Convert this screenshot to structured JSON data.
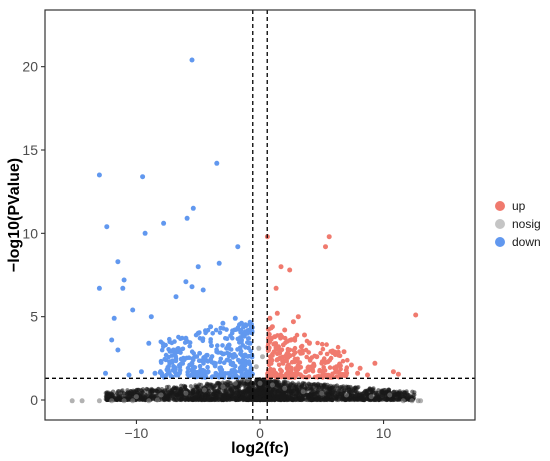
{
  "chart_data": {
    "type": "scatter",
    "title": "",
    "xlabel": "log2(fc)",
    "ylabel": "−log10(PValue)",
    "xlim": [
      -17.4,
      17.4
    ],
    "ylim": [
      -1.2,
      23.4
    ],
    "x_ticks": [
      -10,
      0,
      10
    ],
    "y_ticks": [
      0,
      5,
      10,
      15,
      20
    ],
    "x_tick_labels": [
      "−10",
      "0",
      "10"
    ],
    "y_tick_labels": [
      "0",
      "5",
      "10",
      "15",
      "20"
    ],
    "grid": false,
    "legend_position": "right",
    "vlines": [
      -0.585,
      0.585
    ],
    "hline": 1.301,
    "series": [
      {
        "name": "up",
        "color": "#f07a6e",
        "points": [
          [
            0.6,
            9.8
          ],
          [
            1.7,
            8.0
          ],
          [
            2.4,
            7.8
          ],
          [
            5.3,
            9.2
          ],
          [
            5.6,
            9.8
          ],
          [
            1.3,
            6.7
          ],
          [
            3.1,
            5.0
          ],
          [
            12.6,
            5.1
          ],
          [
            4.0,
            3.4
          ],
          [
            6.8,
            2.9
          ],
          [
            9.3,
            2.2
          ],
          [
            10.8,
            1.7
          ],
          [
            11.2,
            1.55
          ],
          [
            0.8,
            4.9
          ],
          [
            1.0,
            4.4
          ],
          [
            1.2,
            3.8
          ],
          [
            1.5,
            3.2
          ],
          [
            2.0,
            4.2
          ],
          [
            2.5,
            3.6
          ],
          [
            3.3,
            2.8
          ],
          [
            4.6,
            2.6
          ],
          [
            5.5,
            2.3
          ],
          [
            6.2,
            2.0
          ],
          [
            7.4,
            2.1
          ],
          [
            8.1,
            1.9
          ],
          [
            0.7,
            3.0
          ],
          [
            0.9,
            2.2
          ],
          [
            1.1,
            1.8
          ],
          [
            1.6,
            2.5
          ],
          [
            2.2,
            1.9
          ],
          [
            2.8,
            2.3
          ],
          [
            3.7,
            1.7
          ],
          [
            4.2,
            2.0
          ],
          [
            5.1,
            1.6
          ],
          [
            6.6,
            1.5
          ],
          [
            7.9,
            1.6
          ],
          [
            8.7,
            1.5
          ],
          [
            1.4,
            5.2
          ],
          [
            2.7,
            4.7
          ],
          [
            3.6,
            3.9
          ]
        ]
      },
      {
        "name": "nosig",
        "color": "#7f7f7f",
        "points": [
          [
            -13.0,
            -0.05
          ],
          [
            -12.0,
            -0.05
          ],
          [
            -11.0,
            -0.05
          ],
          [
            -10.3,
            -0.05
          ],
          [
            -9.0,
            -0.05
          ],
          [
            -8.3,
            0.0
          ],
          [
            -14.4,
            -0.05
          ],
          [
            -15.2,
            -0.05
          ],
          [
            11.6,
            -0.05
          ],
          [
            12.3,
            -0.05
          ],
          [
            12.8,
            -0.05
          ],
          [
            13.0,
            -0.05
          ],
          [
            -6.0,
            0.4
          ],
          [
            -4.5,
            0.6
          ],
          [
            -3.0,
            0.8
          ],
          [
            -2.0,
            1.0
          ],
          [
            -1.0,
            1.2
          ],
          [
            0.0,
            1.0
          ],
          [
            1.0,
            0.9
          ],
          [
            2.0,
            0.7
          ],
          [
            3.5,
            0.5
          ],
          [
            5.0,
            0.4
          ],
          [
            7.0,
            0.3
          ],
          [
            9.0,
            0.2
          ],
          [
            10.5,
            0.3
          ],
          [
            -8.0,
            0.3
          ],
          [
            -10.0,
            0.2
          ],
          [
            -0.3,
            2.0
          ],
          [
            0.2,
            2.6
          ],
          [
            -0.1,
            3.1
          ]
        ]
      },
      {
        "name": "down",
        "color": "#6198ef",
        "points": [
          [
            -5.5,
            20.4
          ],
          [
            -3.5,
            14.2
          ],
          [
            -13.0,
            13.5
          ],
          [
            -9.5,
            13.4
          ],
          [
            -5.4,
            11.5
          ],
          [
            -5.9,
            10.9
          ],
          [
            -12.4,
            10.4
          ],
          [
            -9.3,
            10.0
          ],
          [
            -7.8,
            10.6
          ],
          [
            -1.8,
            9.2
          ],
          [
            -11.5,
            8.3
          ],
          [
            -5.0,
            8.0
          ],
          [
            -3.3,
            8.2
          ],
          [
            -11.0,
            7.2
          ],
          [
            -6.0,
            7.1
          ],
          [
            -5.5,
            6.8
          ],
          [
            -4.6,
            6.6
          ],
          [
            -13.0,
            6.7
          ],
          [
            -11.1,
            6.7
          ],
          [
            -6.8,
            6.2
          ],
          [
            -10.3,
            5.4
          ],
          [
            -11.8,
            4.9
          ],
          [
            -8.8,
            5.0
          ],
          [
            -12.0,
            3.6
          ],
          [
            -11.5,
            3.0
          ],
          [
            -9.0,
            3.4
          ],
          [
            -7.0,
            3.0
          ],
          [
            -6.0,
            3.7
          ],
          [
            -5.0,
            4.0
          ],
          [
            -4.0,
            4.4
          ],
          [
            -3.0,
            4.6
          ],
          [
            -2.0,
            4.9
          ],
          [
            -1.5,
            4.6
          ],
          [
            -1.0,
            4.0
          ],
          [
            -0.8,
            3.4
          ],
          [
            -1.2,
            2.7
          ],
          [
            -2.5,
            3.3
          ],
          [
            -3.5,
            2.9
          ],
          [
            -4.5,
            2.5
          ],
          [
            -5.5,
            2.2
          ],
          [
            -6.5,
            2.0
          ],
          [
            -7.5,
            1.8
          ],
          [
            -8.5,
            1.6
          ],
          [
            -9.6,
            1.7
          ],
          [
            -10.6,
            1.5
          ],
          [
            -12.5,
            1.6
          ],
          [
            -2.2,
            2.1
          ],
          [
            -3.1,
            1.8
          ],
          [
            -1.6,
            1.9
          ],
          [
            -4.2,
            1.7
          ],
          [
            -5.2,
            1.5
          ],
          [
            -0.9,
            2.3
          ]
        ]
      }
    ]
  }
}
